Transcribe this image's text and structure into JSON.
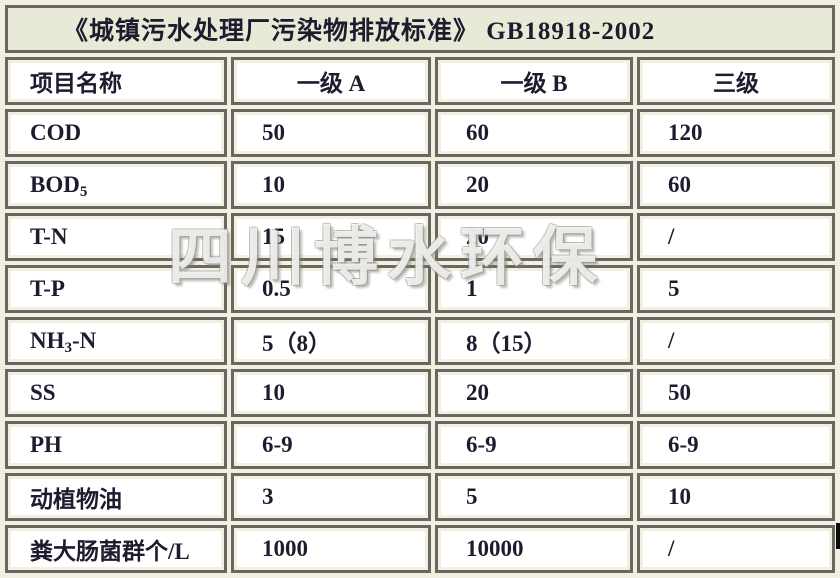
{
  "title": "《城镇污水处理厂污染物排放标准》 GB18918-2002",
  "watermark": "四川博水环保",
  "colors": {
    "page_background": "#f3efe2",
    "title_background": "#e9e9d8",
    "cell_background": "#ffffff",
    "grid_border": "#68685e",
    "text": "#1c1c2e",
    "watermark_fill": "rgba(255,255,255,0.8)"
  },
  "table": {
    "headers": [
      "项目名称",
      "一级 A",
      "一级 B",
      "三级"
    ],
    "rows": [
      {
        "name": "COD",
        "sub": "",
        "suffix": "",
        "level1a": "50",
        "level1b": "60",
        "level3": "120"
      },
      {
        "name": "BOD",
        "sub": "5",
        "suffix": "",
        "level1a": "10",
        "level1b": "20",
        "level3": "60"
      },
      {
        "name": "T-N",
        "sub": "",
        "suffix": "",
        "level1a": "15",
        "level1b": "20",
        "level3": "/"
      },
      {
        "name": "T-P",
        "sub": "",
        "suffix": "",
        "level1a": "0.5",
        "level1b": "1",
        "level3": "5"
      },
      {
        "name": "NH",
        "sub": "3",
        "suffix": "-N",
        "level1a": "5（8）",
        "level1b": "8（15）",
        "level3": "/"
      },
      {
        "name": "SS",
        "sub": "",
        "suffix": "",
        "level1a": "10",
        "level1b": "20",
        "level3": "50"
      },
      {
        "name": "PH",
        "sub": "",
        "suffix": "",
        "level1a": "6-9",
        "level1b": "6-9",
        "level3": "6-9"
      },
      {
        "name": "动植物油",
        "sub": "",
        "suffix": "",
        "level1a": "3",
        "level1b": "5",
        "level3": "10"
      },
      {
        "name": "粪大肠菌群个/L",
        "sub": "",
        "suffix": "",
        "level1a": "1000",
        "level1b": "10000",
        "level3": "/"
      }
    ]
  }
}
